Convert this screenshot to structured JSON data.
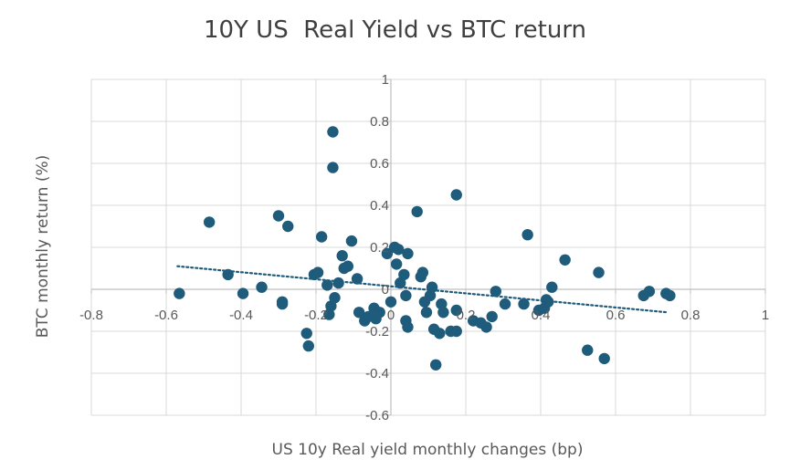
{
  "chart_data": {
    "type": "scatter",
    "title": "10Y US  Real Yield vs BTC return",
    "xlabel": "US 10y Real yield monthly changes (bp)",
    "ylabel": "BTC monthly return (%)",
    "xlim": [
      -0.8,
      1
    ],
    "ylim": [
      -0.6,
      1
    ],
    "x_ticks": [
      "-0.8",
      "-0.6",
      "-0.4",
      "-0.2",
      "0",
      "0.2",
      "0.4",
      "0.6",
      "0.8",
      "1"
    ],
    "y_ticks": [
      "1",
      "0.8",
      "0.6",
      "0.4",
      "0.2",
      "0",
      "-0.2",
      "-0.4",
      "-0.6"
    ],
    "grid": true,
    "trendline": {
      "style": "dotted",
      "x": [
        -0.57,
        0.74
      ],
      "y": [
        0.11,
        -0.11
      ]
    },
    "colors": {
      "points": "#1f5b7a",
      "trendline": "#1f5b7a",
      "grid": "#d9d9d9",
      "axis": "#bfbfbf"
    },
    "points": [
      {
        "x": -0.565,
        "y": -0.02
      },
      {
        "x": -0.485,
        "y": 0.32
      },
      {
        "x": -0.435,
        "y": 0.07
      },
      {
        "x": -0.395,
        "y": -0.02
      },
      {
        "x": -0.345,
        "y": 0.01
      },
      {
        "x": -0.3,
        "y": 0.35
      },
      {
        "x": -0.29,
        "y": -0.06
      },
      {
        "x": -0.275,
        "y": 0.3
      },
      {
        "x": -0.29,
        "y": -0.07
      },
      {
        "x": -0.225,
        "y": -0.21
      },
      {
        "x": -0.22,
        "y": -0.27
      },
      {
        "x": -0.205,
        "y": 0.07
      },
      {
        "x": -0.195,
        "y": 0.08
      },
      {
        "x": -0.185,
        "y": 0.25
      },
      {
        "x": -0.17,
        "y": 0.02
      },
      {
        "x": -0.165,
        "y": -0.12
      },
      {
        "x": -0.16,
        "y": -0.08
      },
      {
        "x": -0.15,
        "y": -0.04
      },
      {
        "x": -0.14,
        "y": 0.03
      },
      {
        "x": -0.155,
        "y": 0.75
      },
      {
        "x": -0.155,
        "y": 0.58
      },
      {
        "x": -0.13,
        "y": 0.16
      },
      {
        "x": -0.125,
        "y": 0.1
      },
      {
        "x": -0.115,
        "y": 0.11
      },
      {
        "x": -0.105,
        "y": 0.23
      },
      {
        "x": -0.09,
        "y": 0.05
      },
      {
        "x": -0.085,
        "y": -0.11
      },
      {
        "x": -0.07,
        "y": -0.15
      },
      {
        "x": -0.06,
        "y": -0.13
      },
      {
        "x": -0.045,
        "y": -0.09
      },
      {
        "x": -0.04,
        "y": -0.14
      },
      {
        "x": -0.03,
        "y": -0.11
      },
      {
        "x": -0.01,
        "y": 0.17
      },
      {
        "x": 0.0,
        "y": -0.06
      },
      {
        "x": 0.01,
        "y": 0.2
      },
      {
        "x": 0.015,
        "y": 0.12
      },
      {
        "x": 0.02,
        "y": 0.19
      },
      {
        "x": 0.025,
        "y": 0.03
      },
      {
        "x": 0.035,
        "y": 0.07
      },
      {
        "x": 0.045,
        "y": 0.17
      },
      {
        "x": 0.04,
        "y": -0.03
      },
      {
        "x": 0.04,
        "y": -0.15
      },
      {
        "x": 0.045,
        "y": -0.18
      },
      {
        "x": 0.07,
        "y": 0.37
      },
      {
        "x": 0.08,
        "y": 0.06
      },
      {
        "x": 0.085,
        "y": 0.08
      },
      {
        "x": 0.09,
        "y": -0.06
      },
      {
        "x": 0.095,
        "y": -0.11
      },
      {
        "x": 0.105,
        "y": -0.03
      },
      {
        "x": 0.11,
        "y": 0.01
      },
      {
        "x": 0.115,
        "y": -0.19
      },
      {
        "x": 0.12,
        "y": -0.36
      },
      {
        "x": 0.13,
        "y": -0.21
      },
      {
        "x": 0.135,
        "y": -0.07
      },
      {
        "x": 0.14,
        "y": -0.11
      },
      {
        "x": 0.16,
        "y": -0.2
      },
      {
        "x": 0.175,
        "y": -0.2
      },
      {
        "x": 0.175,
        "y": 0.45
      },
      {
        "x": 0.175,
        "y": -0.1
      },
      {
        "x": 0.22,
        "y": -0.15
      },
      {
        "x": 0.24,
        "y": -0.16
      },
      {
        "x": 0.255,
        "y": -0.18
      },
      {
        "x": 0.27,
        "y": -0.13
      },
      {
        "x": 0.28,
        "y": -0.01
      },
      {
        "x": 0.305,
        "y": -0.07
      },
      {
        "x": 0.365,
        "y": 0.26
      },
      {
        "x": 0.355,
        "y": -0.07
      },
      {
        "x": 0.395,
        "y": -0.1
      },
      {
        "x": 0.41,
        "y": -0.09
      },
      {
        "x": 0.415,
        "y": -0.05
      },
      {
        "x": 0.42,
        "y": -0.06
      },
      {
        "x": 0.43,
        "y": 0.01
      },
      {
        "x": 0.465,
        "y": 0.14
      },
      {
        "x": 0.525,
        "y": -0.29
      },
      {
        "x": 0.555,
        "y": 0.08
      },
      {
        "x": 0.57,
        "y": -0.33
      },
      {
        "x": 0.675,
        "y": -0.03
      },
      {
        "x": 0.69,
        "y": -0.01
      },
      {
        "x": 0.735,
        "y": -0.02
      },
      {
        "x": 0.745,
        "y": -0.03
      }
    ]
  }
}
